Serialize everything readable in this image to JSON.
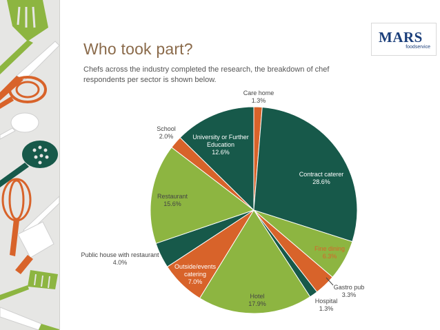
{
  "slide": {
    "title": "Who took part?",
    "subtitle": "Chefs across the industry completed the research, the breakdown of chef respondents per sector is shown below."
  },
  "logo": {
    "word": "MARS",
    "sub": "foodservice"
  },
  "colors": {
    "dark_green": "#17594a",
    "light_green": "#8db541",
    "orange": "#d8632a",
    "title_brown": "#8a6a4a",
    "logo_blue": "#1a3e7a"
  },
  "decor": {
    "icons": [
      "spatula-icon",
      "knife-icon",
      "whisk-icon",
      "spoon-icon",
      "slotted-spoon-icon",
      "cleaver-icon"
    ]
  },
  "chart_data": {
    "type": "pie",
    "unit": "%",
    "slices": [
      {
        "label": "Care home",
        "value": 1.3,
        "display": "1.3%",
        "color": "#d8632a"
      },
      {
        "label": "Contract caterer",
        "value": 28.6,
        "display": "28.6%",
        "color": "#17594a"
      },
      {
        "label": "Fine dining",
        "value": 6.3,
        "display": "6.3%",
        "color": "#8db541"
      },
      {
        "label": "Gastro pub",
        "value": 3.3,
        "display": "3.3%",
        "color": "#d8632a"
      },
      {
        "label": "Hospital",
        "value": 1.3,
        "display": "1.3%",
        "color": "#17594a"
      },
      {
        "label": "Hotel",
        "value": 17.9,
        "display": "17.9%",
        "color": "#8db541"
      },
      {
        "label": "Outside/events catering",
        "value": 7.0,
        "display": "7.0%",
        "color": "#d8632a"
      },
      {
        "label": "Public house with restaurant",
        "value": 4.0,
        "display": "4.0%",
        "color": "#17594a"
      },
      {
        "label": "Restaurant",
        "value": 15.6,
        "display": "15.6%",
        "color": "#8db541"
      },
      {
        "label": "School",
        "value": 2.0,
        "display": "2.0%",
        "color": "#d8632a"
      },
      {
        "label": "University or Further Education",
        "value": 12.6,
        "display": "12.6%",
        "color": "#17594a"
      }
    ],
    "start": "12 o'clock",
    "direction": "clockwise"
  }
}
